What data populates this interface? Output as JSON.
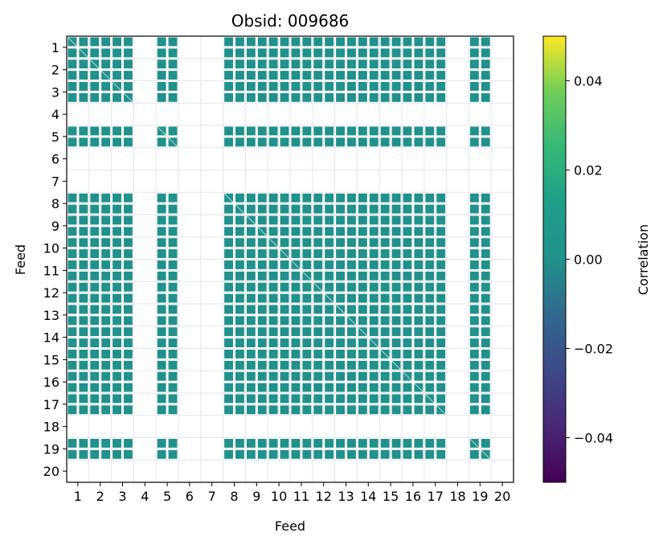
{
  "chart_data": {
    "type": "heatmap",
    "title": "Obsid: 009686",
    "xlabel": "Feed",
    "ylabel": "Feed",
    "feeds": [
      1,
      2,
      3,
      4,
      5,
      6,
      7,
      8,
      9,
      10,
      11,
      12,
      13,
      14,
      15,
      16,
      17,
      18,
      19,
      20
    ],
    "active_feeds": [
      1,
      2,
      3,
      5,
      8,
      9,
      10,
      11,
      12,
      13,
      14,
      15,
      16,
      17,
      19
    ],
    "uniform_value": 0.0,
    "colorbar": {
      "label": "Correlation",
      "vmin": -0.05,
      "vmax": 0.05,
      "ticks": [
        0.04,
        0.02,
        0.0,
        -0.02,
        -0.04
      ],
      "tick_labels": [
        "0.04",
        "0.02",
        "0.00",
        "−0.02",
        "−0.04"
      ],
      "colormap": "viridis"
    },
    "grid": true
  },
  "colors": {
    "cell": "#21918c",
    "grid": "#e6e6e6",
    "frame": "#000000",
    "background": "#ffffff"
  }
}
